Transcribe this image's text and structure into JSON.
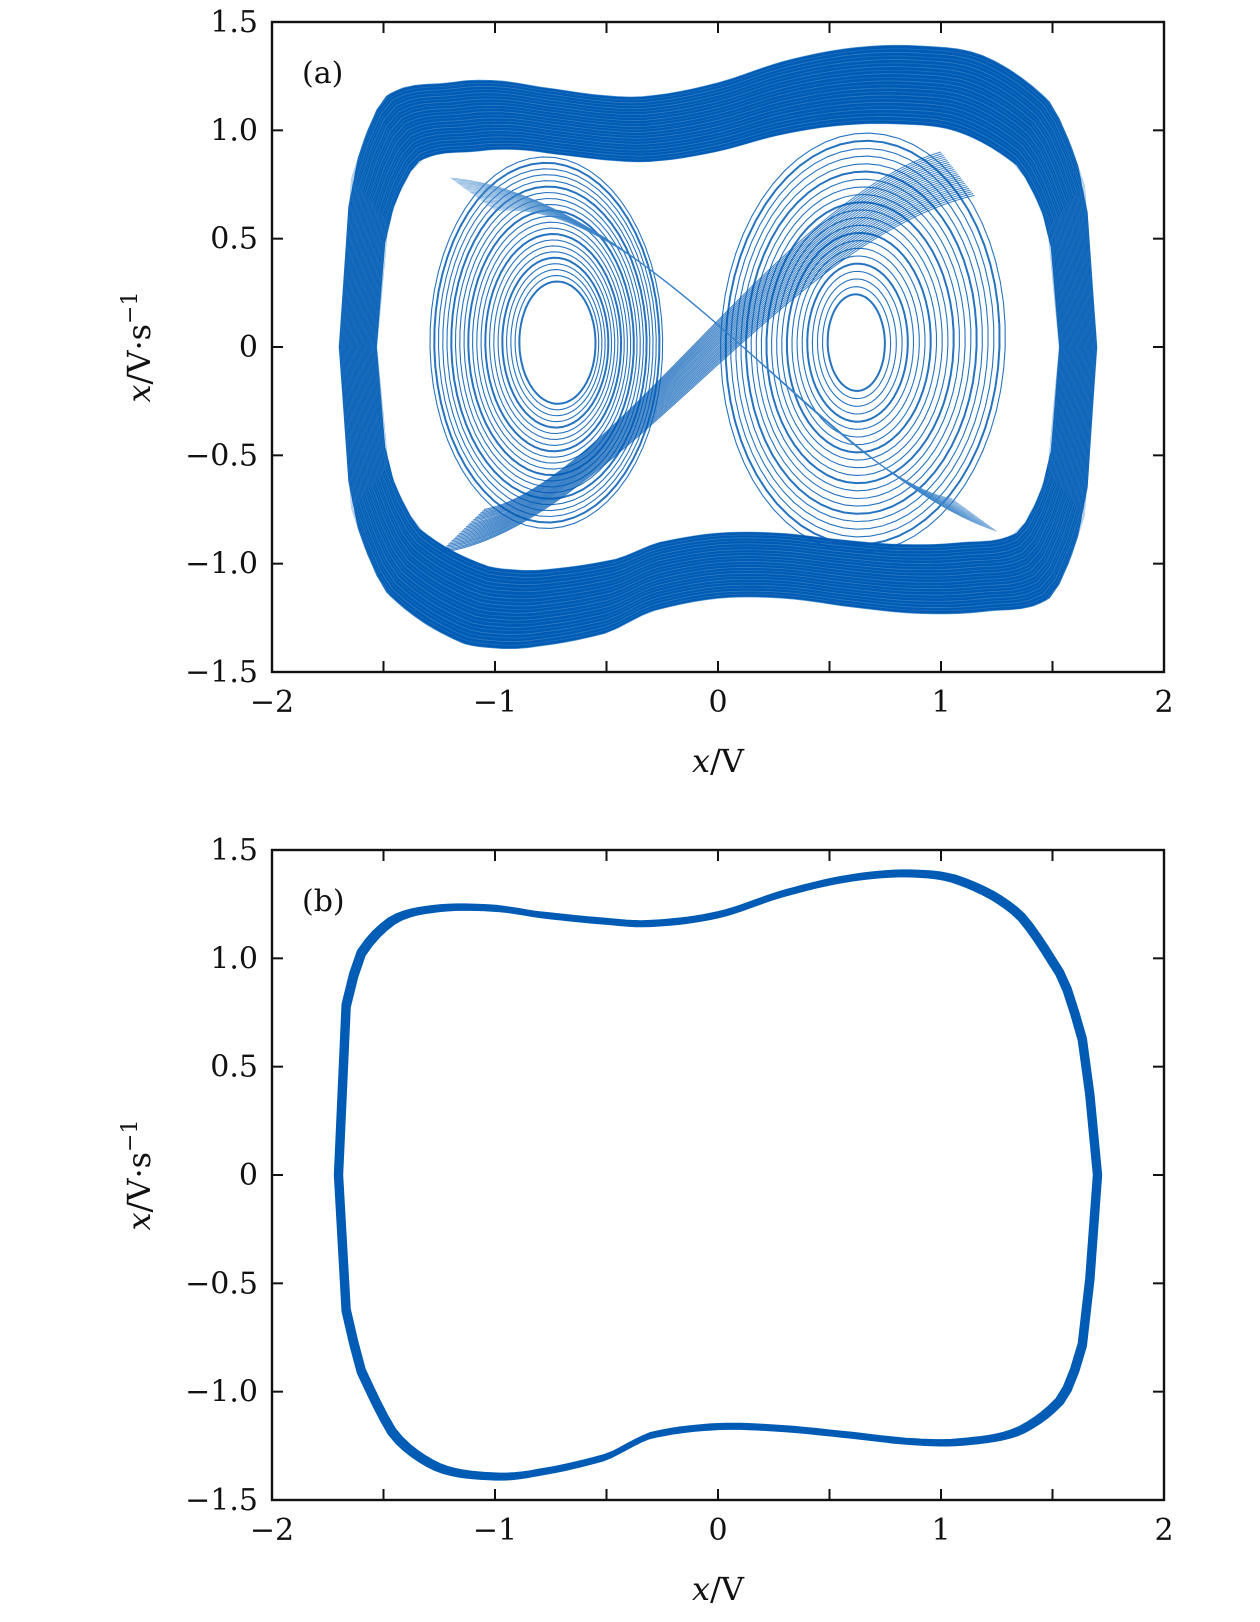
{
  "colors": {
    "trajectory": "#005bb5",
    "trajectory_light": "#3d86c9",
    "axes": "#111111"
  },
  "chart_data": [
    {
      "type": "line",
      "panel": "(a)",
      "regime": "chaotic",
      "xlabel": {
        "var": "x",
        "unit": "/V"
      },
      "ylabel": {
        "var": "x",
        "unit": "/V·s",
        "sup": "−1"
      },
      "xlim": [
        -2,
        2
      ],
      "ylim": [
        -1.5,
        1.5
      ],
      "xticks": [
        -2,
        -1.5,
        -1,
        -0.5,
        0,
        0.5,
        1,
        1.5,
        2
      ],
      "xtick_labels": [
        "−2",
        "",
        "−1",
        "",
        "0",
        "",
        "1",
        "",
        "2"
      ],
      "yticks": [
        -1.5,
        -1.0,
        -0.5,
        0,
        0.5,
        1.0,
        1.5
      ],
      "ytick_labels": [
        "−1.5",
        "−1.0",
        "−0.5",
        "0",
        "0.5",
        "1.0",
        "1.5"
      ],
      "grid": false,
      "outer_envelope": {
        "x": [
          -1.7,
          -1.65,
          -1.5,
          -1.2,
          -1.0,
          -0.8,
          -0.5,
          -0.3,
          0.0,
          0.3,
          0.6,
          0.9,
          1.2,
          1.5,
          1.65,
          1.7
        ],
        "y_upper": [
          0.0,
          0.75,
          1.15,
          1.22,
          1.23,
          1.2,
          1.16,
          1.16,
          1.22,
          1.32,
          1.38,
          1.39,
          1.34,
          1.12,
          0.72,
          0.0
        ],
        "y_lower": [
          0.0,
          -0.72,
          -1.12,
          -1.34,
          -1.39,
          -1.38,
          -1.32,
          -1.22,
          -1.16,
          -1.16,
          -1.2,
          -1.23,
          -1.22,
          -1.15,
          -0.75,
          0.0
        ]
      },
      "inner_loops": [
        {
          "center": [
            -0.72,
            0.02
          ],
          "rx": [
            0.18,
            0.55
          ],
          "ry": [
            0.28,
            0.85
          ]
        },
        {
          "center": [
            0.62,
            0.02
          ],
          "rx": [
            0.14,
            0.7
          ],
          "ry": [
            0.22,
            0.95
          ]
        }
      ]
    },
    {
      "type": "line",
      "panel": "(b)",
      "regime": "periodic",
      "xlabel": {
        "var": "x",
        "unit": "/V"
      },
      "ylabel": {
        "var": "x",
        "unit": "/V·s",
        "sup": "−1"
      },
      "xlim": [
        -2,
        2
      ],
      "ylim": [
        -1.5,
        1.5
      ],
      "xticks": [
        -2,
        -1.5,
        -1,
        -0.5,
        0,
        0.5,
        1,
        1.5,
        2
      ],
      "xtick_labels": [
        "−2",
        "",
        "−1",
        "",
        "0",
        "",
        "1",
        "",
        "2"
      ],
      "yticks": [
        -1.5,
        -1.0,
        -0.5,
        0,
        0.5,
        1.0,
        1.5
      ],
      "ytick_labels": [
        "−1.5",
        "−1.0",
        "−0.5",
        "0",
        "0.5",
        "1.0",
        "1.5"
      ],
      "grid": false,
      "limit_cycle": {
        "x": [
          -1.7,
          -1.68,
          -1.6,
          -1.45,
          -1.25,
          -1.0,
          -0.8,
          -0.5,
          -0.3,
          0.0,
          0.3,
          0.6,
          0.88,
          1.1,
          1.35,
          1.55,
          1.65,
          1.7
        ],
        "y_upper": [
          0.0,
          0.7,
          1.02,
          1.18,
          1.23,
          1.23,
          1.2,
          1.17,
          1.16,
          1.2,
          1.3,
          1.37,
          1.39,
          1.35,
          1.2,
          0.9,
          0.55,
          0.0
        ],
        "y_lower": [
          0.0,
          -0.55,
          -0.9,
          -1.2,
          -1.35,
          -1.39,
          -1.37,
          -1.3,
          -1.2,
          -1.16,
          -1.17,
          -1.2,
          -1.23,
          -1.23,
          -1.18,
          -1.02,
          -0.7,
          0.0
        ]
      }
    }
  ]
}
